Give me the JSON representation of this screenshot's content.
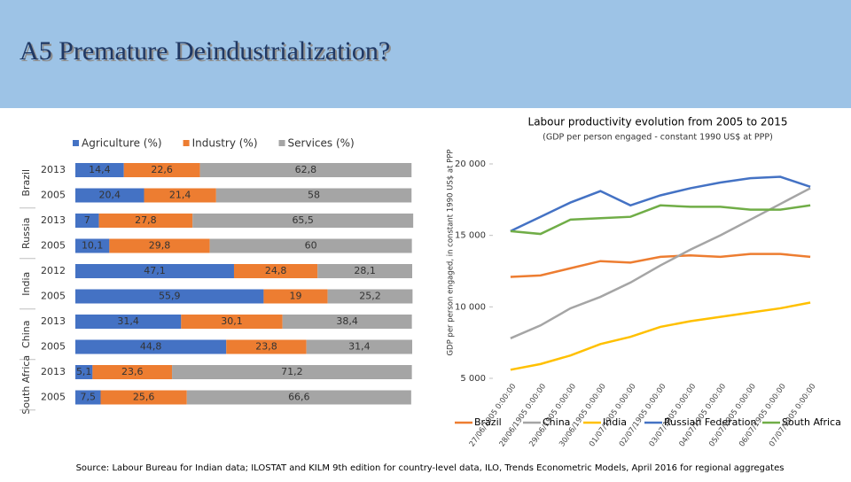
{
  "header": {
    "title": "A5 Premature Deindustrialization?"
  },
  "source": "Source: Labour Bureau for Indian data; ILOSTAT and KILM 9th edition for country-level data, ILO, Trends Econometric Models, April 2016 for regional aggregates",
  "chart_data": [
    {
      "type": "bar",
      "orientation": "horizontal",
      "stacked": true,
      "group_labels": [
        "Brazil",
        "Russia",
        "India",
        "China",
        "South Africa"
      ],
      "categories": [
        "2013",
        "2005",
        "2013",
        "2005",
        "2012",
        "2005",
        "2013",
        "2005",
        "2013",
        "2005"
      ],
      "xlim": [
        0,
        100
      ],
      "series": [
        {
          "name": "Agriculture (%)",
          "color": "#4472c4",
          "values": [
            14.4,
            20.4,
            7,
            10.1,
            47.1,
            55.9,
            31.4,
            44.8,
            5.1,
            7.5
          ],
          "value_labels": [
            "14,4",
            "20,4",
            "7",
            "10,1",
            "47,1",
            "55,9",
            "31,4",
            "44,8",
            "5,1",
            "7,5"
          ]
        },
        {
          "name": "Industry (%)",
          "color": "#ed7d31",
          "values": [
            22.6,
            21.4,
            27.8,
            29.8,
            24.8,
            19,
            30.1,
            23.8,
            23.6,
            25.6
          ],
          "value_labels": [
            "22,6",
            "21,4",
            "27,8",
            "29,8",
            "24,8",
            "19",
            "30,1",
            "23,8",
            "23,6",
            "25,6"
          ]
        },
        {
          "name": "Services (%)",
          "color": "#a5a5a5",
          "values": [
            62.8,
            58,
            65.5,
            60,
            28.1,
            25.2,
            38.4,
            31.4,
            71.2,
            66.6
          ],
          "value_labels": [
            "62,8",
            "58",
            "65,5",
            "60",
            "28,1",
            "25,2",
            "38,4",
            "31,4",
            "71,2",
            "66,6"
          ]
        }
      ]
    },
    {
      "type": "line",
      "title": "Labour productivity evolution from 2005 to 2015",
      "subtitle": "(GDP per person engaged - constant 1990 US$ at PPP)",
      "y_label": "GDP per person engaged, in constant 1990 US$ at PPP",
      "categories": [
        "27/06/1905 0:00:00",
        "28/06/1905 0:00:00",
        "29/06/1905 0:00:00",
        "30/06/1905 0:00:00",
        "01/07/1905 0:00:00",
        "02/07/1905 0:00:00",
        "03/07/1905 0:00:00",
        "04/07/1905 0:00:00",
        "05/07/1905 0:00:00",
        "06/07/1905 0:00:00",
        "07/07/1905 0:00:00"
      ],
      "ylim": [
        5000,
        20000
      ],
      "yticks": [
        {
          "value": 5000,
          "label": "5 000"
        },
        {
          "value": 10000,
          "label": "10 000"
        },
        {
          "value": 15000,
          "label": "15 000"
        },
        {
          "value": 20000,
          "label": "20 000"
        }
      ],
      "series": [
        {
          "name": "Brazil",
          "color": "#ed7d31",
          "values": [
            12100,
            12200,
            12700,
            13200,
            13100,
            13500,
            13600,
            13500,
            13700,
            13700,
            13500
          ]
        },
        {
          "name": "China",
          "color": "#a5a5a5",
          "values": [
            7800,
            8700,
            9900,
            10700,
            11700,
            12900,
            14000,
            15000,
            16100,
            17200,
            18300
          ]
        },
        {
          "name": "India",
          "color": "#ffc000",
          "values": [
            5600,
            6000,
            6600,
            7400,
            7900,
            8600,
            9000,
            9300,
            9600,
            9900,
            10300
          ]
        },
        {
          "name": "Russian Federation",
          "color": "#4472c4",
          "values": [
            15300,
            16300,
            17300,
            18100,
            17100,
            17800,
            18300,
            18700,
            19000,
            19100,
            18400
          ]
        },
        {
          "name": "South Africa",
          "color": "#70ad47",
          "values": [
            15300,
            15100,
            16100,
            16200,
            16300,
            17100,
            17000,
            17000,
            16800,
            16800,
            17100
          ]
        }
      ]
    }
  ]
}
